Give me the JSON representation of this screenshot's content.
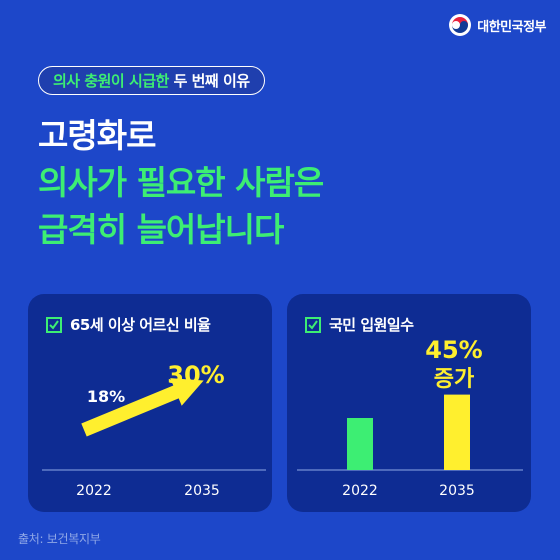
{
  "header": {
    "organization": "대한민국정부"
  },
  "tag": {
    "part1": "의사 충원이 시급한",
    "part2": "두 번째 이유"
  },
  "headline": {
    "line1": "고령화로",
    "line2": "의사가 필요한 사람은",
    "line3": "급격히 늘어납니다"
  },
  "colors": {
    "background": "#1d47c9",
    "card": "#0e2c93",
    "green": "#3dee73",
    "yellow": "#ffef2e"
  },
  "chart_data": [
    {
      "type": "line",
      "title": "65세 이상 어르신 비율",
      "categories": [
        "2022",
        "2035"
      ],
      "values": [
        18,
        30
      ],
      "value_labels": [
        "18%",
        "30%"
      ],
      "ylim": [
        0,
        40
      ]
    },
    {
      "type": "bar",
      "title": "국민 입원일수",
      "categories": [
        "2022",
        "2035"
      ],
      "values": [
        100,
        145
      ],
      "bar_colors": [
        "#3dee73",
        "#ffef2e"
      ],
      "annotation_line1": "45%",
      "annotation_line2": "증가",
      "ylim": [
        0,
        200
      ]
    }
  ],
  "footer": {
    "source": "출처: 보건복지부"
  }
}
